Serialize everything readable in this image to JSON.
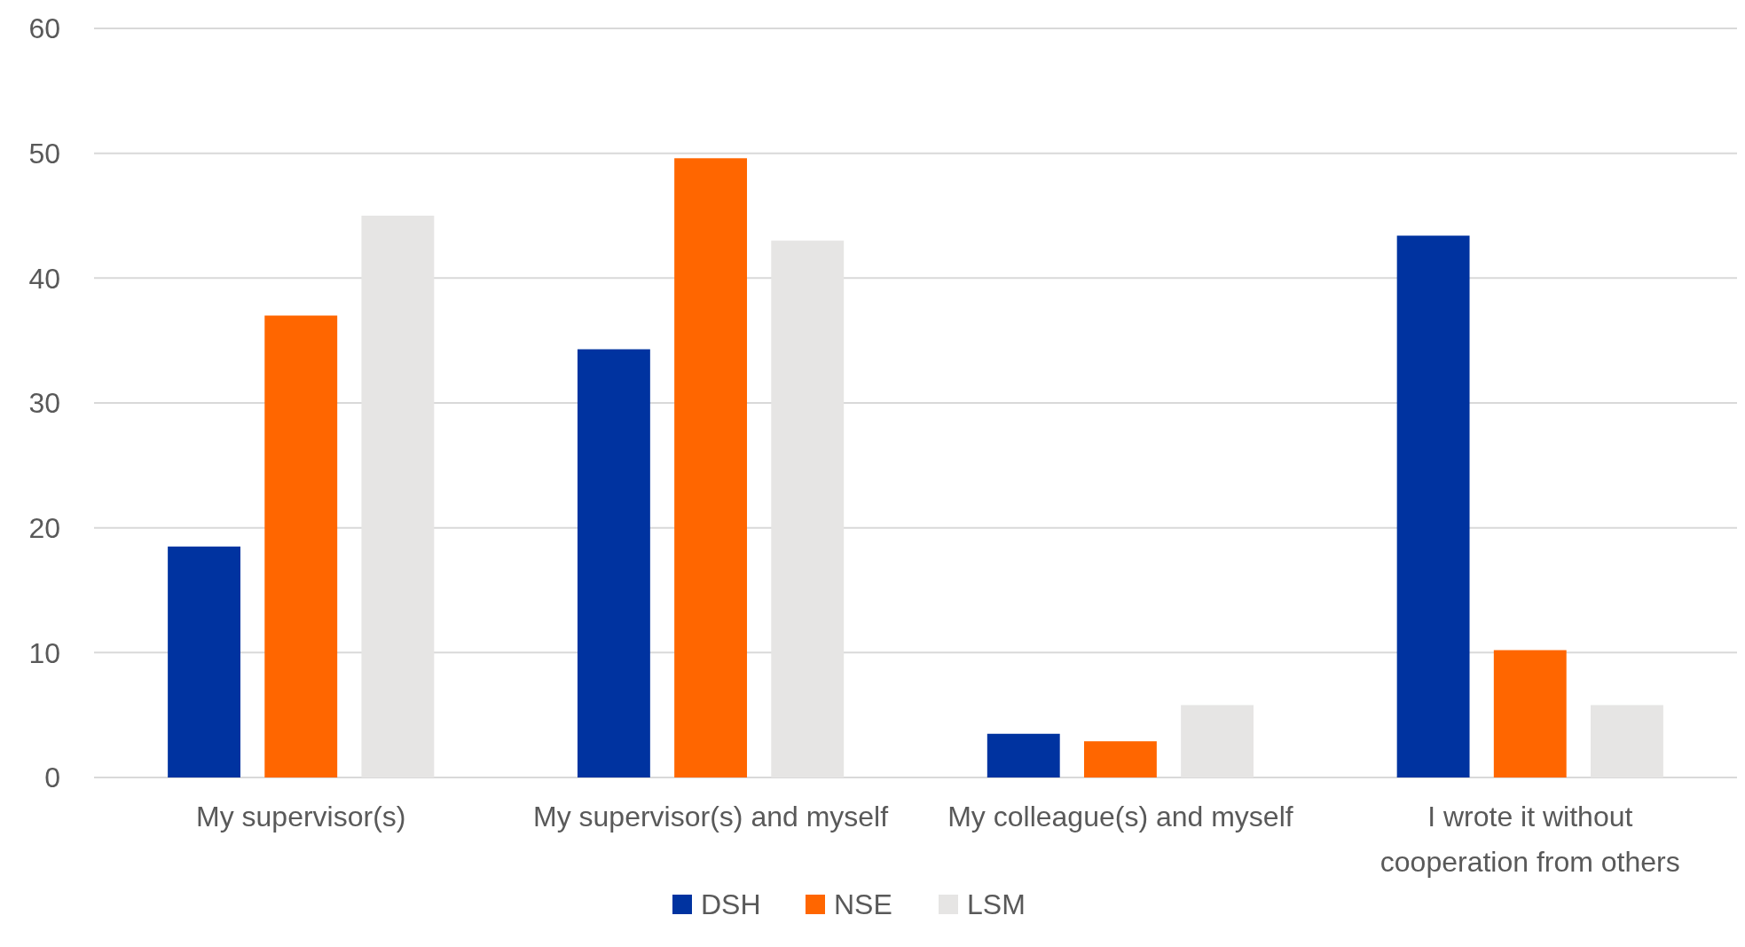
{
  "chart_data": {
    "type": "bar",
    "categories": [
      "My supervisor(s)",
      "My supervisor(s) and myself",
      "My colleague(s) and myself",
      "I wrote it without cooperation from others"
    ],
    "series": [
      {
        "name": "DSH",
        "color": "#0033a0",
        "values": [
          18.5,
          34.3,
          3.5,
          43.4
        ]
      },
      {
        "name": "NSE",
        "color": "#ff6600",
        "values": [
          37,
          49.6,
          2.9,
          10.2
        ]
      },
      {
        "name": "LSM",
        "color": "#e6e5e4",
        "values": [
          45,
          43,
          5.8,
          5.8
        ]
      }
    ],
    "ylim": [
      0,
      60
    ],
    "yticks": [
      0,
      10,
      20,
      30,
      40,
      50,
      60
    ],
    "grid": "y",
    "legend": "bottom"
  }
}
